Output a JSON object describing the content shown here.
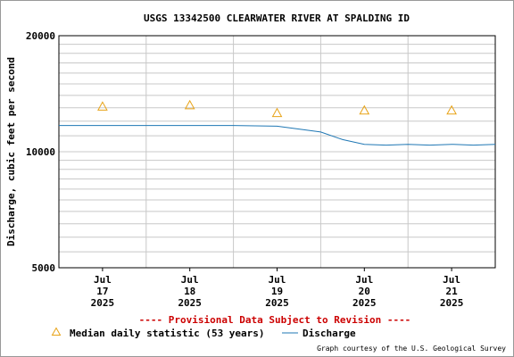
{
  "chart_data": {
    "type": "line",
    "title": "USGS 13342500 CLEARWATER RIVER AT SPALDING ID",
    "ylabel": "Discharge, cubic feet per second",
    "y_scale": "log",
    "ylim": [
      5000,
      20000
    ],
    "y_tick_labels": [
      "20000",
      "10000",
      "5000"
    ],
    "y_tick_values": [
      20000,
      10000,
      5000
    ],
    "x_ticks": [
      {
        "month": "Jul",
        "day": "17",
        "year": "2025"
      },
      {
        "month": "Jul",
        "day": "18",
        "year": "2025"
      },
      {
        "month": "Jul",
        "day": "19",
        "year": "2025"
      },
      {
        "month": "Jul",
        "day": "20",
        "year": "2025"
      },
      {
        "month": "Jul",
        "day": "21",
        "year": "2025"
      }
    ],
    "xlim": [
      "2025-07-16 12:00",
      "2025-07-21 12:00"
    ],
    "grid": true,
    "series": [
      {
        "name": "Discharge",
        "color": "#1f77b4",
        "points": [
          [
            "2025-07-16 12:00",
            11700
          ],
          [
            "2025-07-17 00:00",
            11700
          ],
          [
            "2025-07-17 12:00",
            11700
          ],
          [
            "2025-07-18 00:00",
            11700
          ],
          [
            "2025-07-18 12:00",
            11700
          ],
          [
            "2025-07-19 00:00",
            11650
          ],
          [
            "2025-07-19 06:00",
            11450
          ],
          [
            "2025-07-19 12:00",
            11250
          ],
          [
            "2025-07-19 18:00",
            10750
          ],
          [
            "2025-07-20 00:00",
            10450
          ],
          [
            "2025-07-20 06:00",
            10400
          ],
          [
            "2025-07-20 12:00",
            10450
          ],
          [
            "2025-07-20 18:00",
            10400
          ],
          [
            "2025-07-21 00:00",
            10450
          ],
          [
            "2025-07-21 06:00",
            10400
          ],
          [
            "2025-07-21 12:00",
            10450
          ]
        ]
      },
      {
        "name": "Median daily statistic (53 years)",
        "marker": "triangle",
        "color": "#e8a317",
        "points": [
          [
            "2025-07-17 00:00",
            13100
          ],
          [
            "2025-07-18 00:00",
            13200
          ],
          [
            "2025-07-19 00:00",
            12600
          ],
          [
            "2025-07-20 00:00",
            12800
          ],
          [
            "2025-07-21 00:00",
            12800
          ]
        ]
      }
    ],
    "annotation": "---- Provisional Data Subject to Revision ----",
    "annotation_color": "#cc0000",
    "credit": "Graph courtesy of the U.S. Geological Survey"
  }
}
